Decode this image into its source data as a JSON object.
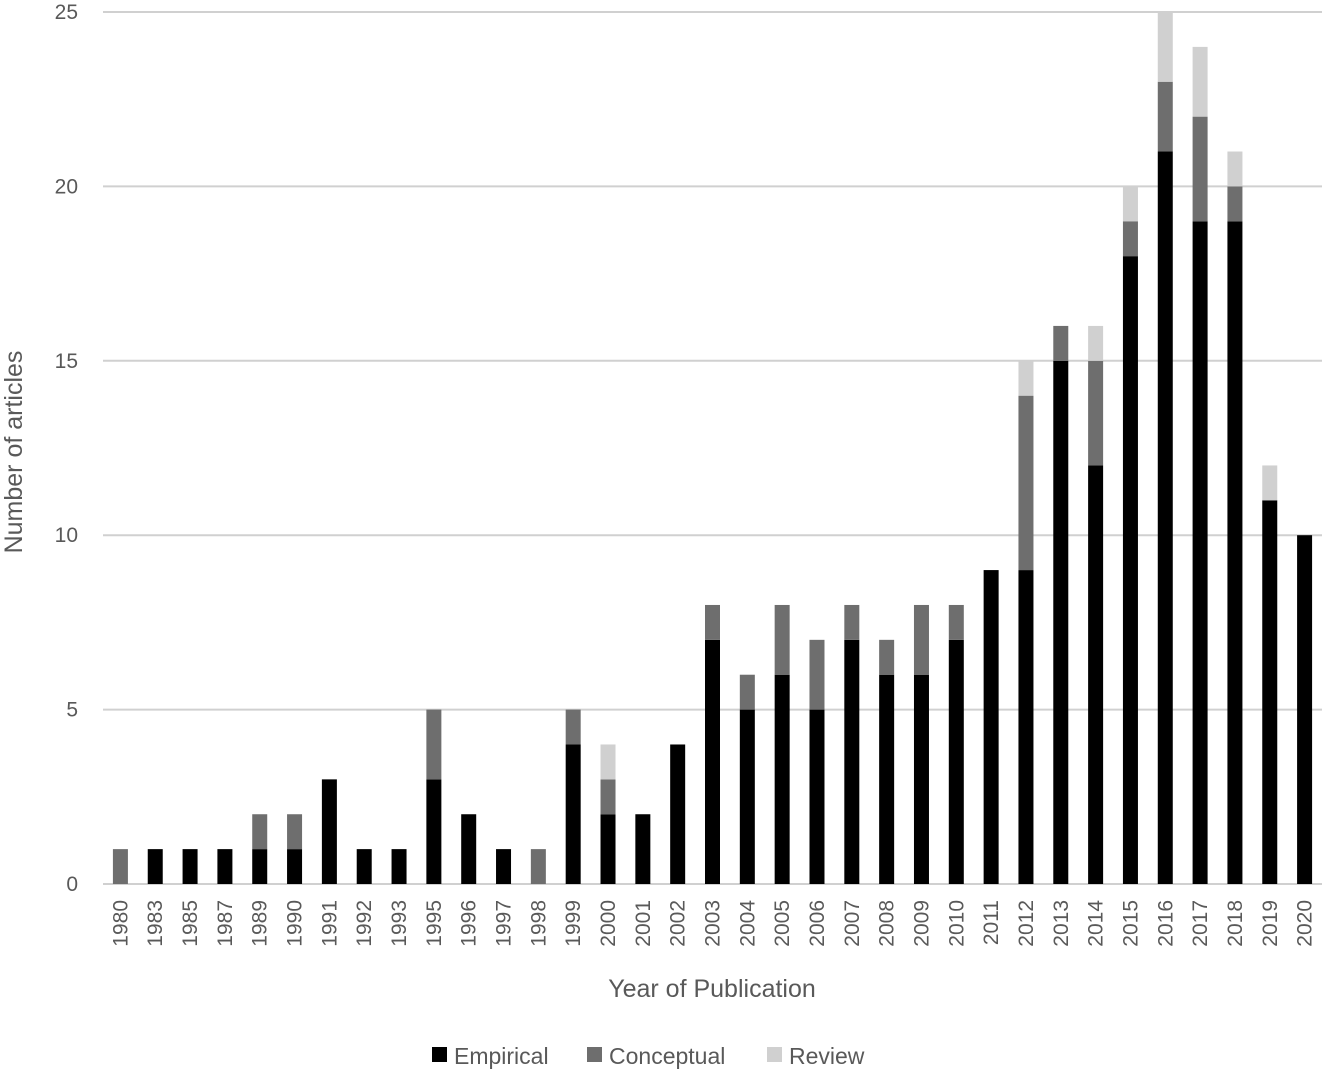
{
  "chart_data": {
    "type": "bar",
    "stacked": true,
    "title": "",
    "xlabel": "Year of Publication",
    "ylabel": "Number of articles",
    "ylim": [
      0,
      25
    ],
    "yticks": [
      0,
      5,
      10,
      15,
      20,
      25
    ],
    "grid": true,
    "legend_position": "bottom",
    "categories": [
      "1980",
      "1983",
      "1985",
      "1987",
      "1989",
      "1990",
      "1991",
      "1992",
      "1993",
      "1995",
      "1996",
      "1997",
      "1998",
      "1999",
      "2000",
      "2001",
      "2002",
      "2003",
      "2004",
      "2005",
      "2006",
      "2007",
      "2008",
      "2009",
      "2010",
      "2011",
      "2012",
      "2013",
      "2014",
      "2015",
      "2016",
      "2017",
      "2018",
      "2019",
      "2020"
    ],
    "series": [
      {
        "name": "Empirical",
        "color": "#000000",
        "values": [
          0,
          1,
          1,
          1,
          1,
          1,
          3,
          1,
          1,
          3,
          2,
          1,
          0,
          4,
          2,
          2,
          4,
          7,
          5,
          6,
          5,
          7,
          6,
          6,
          7,
          9,
          9,
          15,
          12,
          18,
          21,
          19,
          19,
          11,
          10
        ]
      },
      {
        "name": "Conceptual",
        "color": "#6e6e6e",
        "values": [
          1,
          0,
          0,
          0,
          1,
          1,
          0,
          0,
          0,
          2,
          0,
          0,
          1,
          1,
          1,
          0,
          0,
          1,
          1,
          2,
          2,
          1,
          1,
          2,
          1,
          0,
          5,
          1,
          3,
          1,
          2,
          3,
          1,
          0,
          0
        ]
      },
      {
        "name": "Review",
        "color": "#d0d0d0",
        "values": [
          0,
          0,
          0,
          0,
          0,
          0,
          0,
          0,
          0,
          0,
          0,
          0,
          0,
          0,
          1,
          0,
          0,
          0,
          0,
          0,
          0,
          0,
          0,
          0,
          0,
          0,
          1,
          0,
          1,
          1,
          2,
          2,
          1,
          1,
          0
        ]
      }
    ]
  }
}
